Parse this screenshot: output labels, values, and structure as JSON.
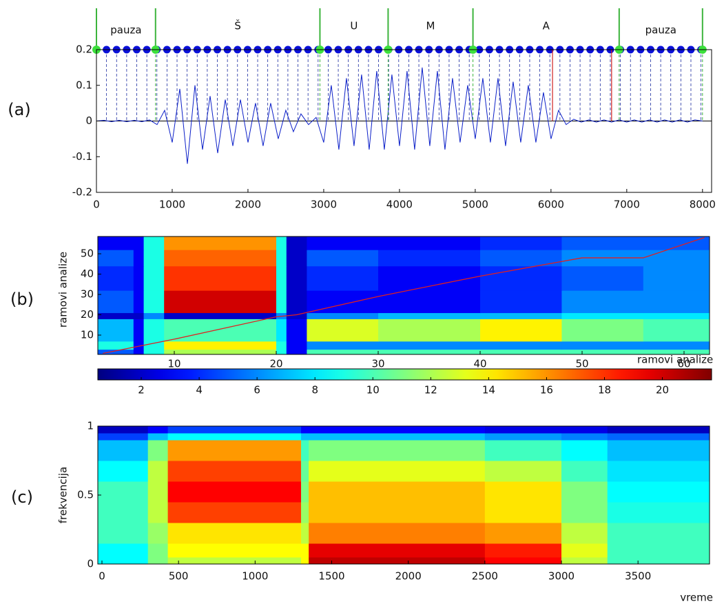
{
  "chart_data": [
    {
      "type": "line",
      "panel_label": "(a)",
      "color": "#0a1ec8",
      "x": [
        0,
        100,
        200,
        300,
        400,
        500,
        600,
        700,
        800,
        900,
        1000,
        1100,
        1200,
        1300,
        1400,
        1500,
        1600,
        1700,
        1800,
        1900,
        2000,
        2100,
        2200,
        2300,
        2400,
        2500,
        2600,
        2700,
        2800,
        2900,
        3000,
        3100,
        3200,
        3300,
        3400,
        3500,
        3600,
        3700,
        3800,
        3900,
        4000,
        4100,
        4200,
        4300,
        4400,
        4500,
        4600,
        4700,
        4800,
        4900,
        5000,
        5100,
        5200,
        5300,
        5400,
        5500,
        5600,
        5700,
        5800,
        5900,
        6000,
        6100,
        6200,
        6300,
        6400,
        6500,
        6600,
        6700,
        6800,
        6900,
        7000,
        7100,
        7200,
        7300,
        7400,
        7500,
        7600,
        7700,
        7800,
        7900,
        8000
      ],
      "values": [
        0,
        0.002,
        -0.002,
        0.002,
        -0.002,
        0.002,
        -0.002,
        0.003,
        -0.01,
        0.03,
        -0.06,
        0.09,
        -0.12,
        0.1,
        -0.08,
        0.07,
        -0.09,
        0.06,
        -0.07,
        0.06,
        -0.06,
        0.05,
        -0.07,
        0.05,
        -0.05,
        0.03,
        -0.03,
        0.02,
        -0.01,
        0.01,
        -0.06,
        0.1,
        -0.08,
        0.12,
        -0.07,
        0.13,
        -0.08,
        0.14,
        -0.08,
        0.13,
        -0.07,
        0.14,
        -0.08,
        0.15,
        -0.07,
        0.14,
        -0.08,
        0.12,
        -0.06,
        0.1,
        -0.05,
        0.12,
        -0.06,
        0.12,
        -0.07,
        0.11,
        -0.06,
        0.1,
        -0.06,
        0.08,
        -0.05,
        0.03,
        -0.01,
        0.005,
        -0.003,
        0.003,
        -0.003,
        0.003,
        -0.003,
        0.003,
        -0.003,
        0.003,
        -0.003,
        0.003,
        -0.003,
        0.003,
        -0.003,
        0.003,
        -0.003,
        0.003,
        0
      ],
      "xlim": [
        0,
        8120
      ],
      "ylim": [
        -0.2,
        0.2
      ],
      "xticks": [
        0,
        1000,
        2000,
        3000,
        4000,
        5000,
        6000,
        7000,
        8000
      ],
      "yticks": [
        -0.2,
        -0.1,
        0,
        0.1,
        0.2
      ],
      "segments": [
        {
          "label": "pauza",
          "start": 0,
          "end": 780
        },
        {
          "label": "Š",
          "start": 780,
          "end": 2950
        },
        {
          "label": "U",
          "start": 2950,
          "end": 3850
        },
        {
          "label": "M",
          "start": 3850,
          "end": 4970
        },
        {
          "label": "A",
          "start": 4970,
          "end": 6900
        },
        {
          "label": "pauza",
          "start": 6900,
          "end": 8000
        }
      ],
      "frame_step": 133,
      "frame_count": 61,
      "red_lines": [
        6020,
        6800
      ]
    },
    {
      "type": "heatmap",
      "panel_label": "(b)",
      "xlabel": "ramovi analize",
      "ylabel": "ramovi analize",
      "colormap": "jet",
      "xbins": [
        2.5,
        6,
        7,
        9,
        20,
        21,
        23,
        30,
        40,
        48,
        56,
        62.5
      ],
      "ybins": [
        0.5,
        3,
        7,
        18,
        21,
        32,
        44,
        52,
        58.5
      ],
      "z": [
        [
          5,
          3,
          9,
          12,
          9,
          3,
          10,
          10,
          10,
          10,
          10
        ],
        [
          9,
          3,
          9,
          14,
          9,
          3,
          6,
          6,
          6,
          6,
          6
        ],
        [
          7,
          3,
          9,
          10,
          8,
          3,
          13,
          12,
          14,
          11,
          10
        ],
        [
          2,
          2,
          6,
          2,
          6,
          2,
          6,
          7,
          7,
          8,
          8
        ],
        [
          5,
          3,
          9,
          20,
          9,
          2,
          3,
          3,
          4,
          6,
          6
        ],
        [
          4,
          3,
          9,
          18,
          9,
          2,
          4,
          3,
          4,
          5,
          6
        ],
        [
          5,
          3,
          9,
          17,
          9,
          2,
          5,
          4,
          5,
          6,
          6
        ],
        [
          3,
          3,
          9,
          16,
          9,
          2,
          3,
          3,
          4,
          5,
          5
        ]
      ],
      "xlim": [
        2.5,
        62.5
      ],
      "ylim": [
        0.5,
        58.5
      ],
      "xticks": [
        10,
        20,
        30,
        40,
        50,
        60
      ],
      "yticks": [
        10,
        20,
        30,
        40,
        50
      ],
      "path": {
        "color": "#e02020",
        "x": [
          3,
          10,
          20,
          22,
          30,
          40,
          50,
          56,
          62
        ],
        "y": [
          1,
          8,
          19,
          20,
          29,
          39,
          48,
          48,
          58
        ]
      },
      "clim": [
        0.5,
        21.7
      ],
      "colorbar_ticks": [
        2,
        4,
        6,
        8,
        10,
        12,
        14,
        16,
        18,
        20
      ]
    },
    {
      "type": "heatmap",
      "panel_label": "(c)",
      "xlabel": "vreme",
      "ylabel": "frekvencija",
      "colormap": "jet",
      "xbins": [
        -27,
        300,
        430,
        1300,
        1350,
        2500,
        3000,
        3300,
        3967
      ],
      "ybins": [
        0,
        0.05,
        0.15,
        0.3,
        0.45,
        0.6,
        0.75,
        0.9,
        0.95,
        1
      ],
      "z": [
        [
          0.5,
          0.6,
          0.65,
          0.7,
          0.95,
          0.9,
          0.65,
          0.55
        ],
        [
          0.5,
          0.6,
          0.7,
          0.7,
          0.92,
          0.88,
          0.68,
          0.55
        ],
        [
          0.55,
          0.62,
          0.72,
          0.65,
          0.8,
          0.78,
          0.65,
          0.55
        ],
        [
          0.55,
          0.65,
          0.85,
          0.62,
          0.75,
          0.72,
          0.6,
          0.52
        ],
        [
          0.55,
          0.65,
          0.9,
          0.6,
          0.75,
          0.72,
          0.6,
          0.5
        ],
        [
          0.5,
          0.65,
          0.85,
          0.58,
          0.68,
          0.65,
          0.55,
          0.48
        ],
        [
          0.45,
          0.6,
          0.78,
          0.55,
          0.6,
          0.55,
          0.5,
          0.45
        ],
        [
          0.35,
          0.45,
          0.5,
          0.45,
          0.45,
          0.42,
          0.4,
          0.38
        ],
        [
          0.25,
          0.3,
          0.35,
          0.3,
          0.3,
          0.28,
          0.28,
          0.25
        ]
      ],
      "xlim": [
        -27,
        3967
      ],
      "ylim": [
        0,
        1
      ],
      "xticks": [
        0,
        500,
        1000,
        1500,
        2000,
        2500,
        3000,
        3500
      ],
      "yticks": [
        0,
        0.5,
        1
      ],
      "clim": [
        0.2,
        1
      ]
    }
  ]
}
